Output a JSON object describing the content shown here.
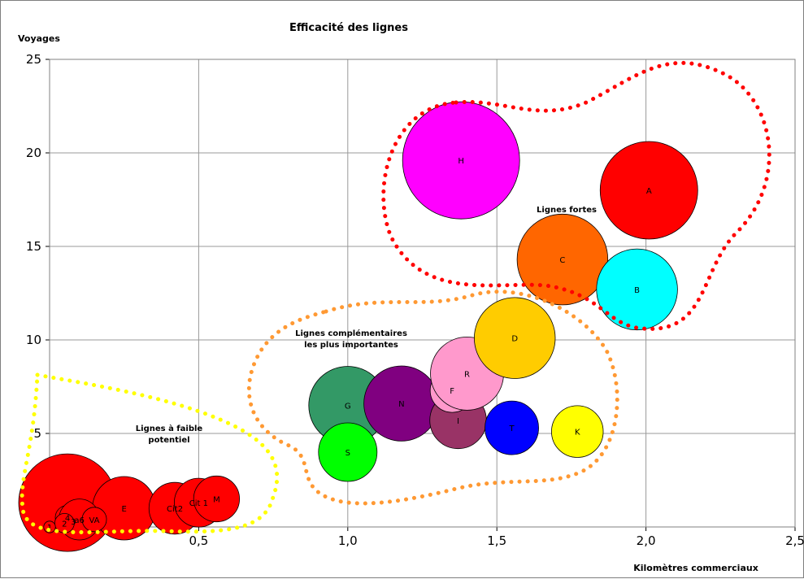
{
  "chart_data": {
    "type": "bubble",
    "title": "Efficacité des lignes",
    "xlabel": "Kilomètres commerciaux",
    "ylabel": "Voyages",
    "xlim": [
      0,
      2.5
    ],
    "ylim": [
      0,
      25
    ],
    "x_ticks": [
      "0,0",
      "0,5",
      "1,0",
      "1,5",
      "2,0",
      "2,5"
    ],
    "y_ticks": [
      "0",
      "5",
      "10",
      "15",
      "20",
      "25"
    ],
    "grid": true,
    "points": [
      {
        "label": "",
        "x": 0.06,
        "y": 1.3,
        "size": 1.0,
        "color": "#ff0000"
      },
      {
        "label": "E",
        "x": 0.25,
        "y": 1.0,
        "size": 0.65,
        "color": "#ff0000"
      },
      {
        "label": "Cit2",
        "x": 0.42,
        "y": 1.0,
        "size": 0.53,
        "color": "#ff0000"
      },
      {
        "label": "Cit 1",
        "x": 0.5,
        "y": 1.3,
        "size": 0.5,
        "color": "#ff0000"
      },
      {
        "label": "M",
        "x": 0.56,
        "y": 1.5,
        "size": 0.47,
        "color": "#ff0000"
      },
      {
        "label": "4",
        "x": 0.06,
        "y": 0.5,
        "size": 0.25,
        "color": "#ff0000"
      },
      {
        "label": "3",
        "x": 0.08,
        "y": 0.3,
        "size": 0.25,
        "color": "#ff0000"
      },
      {
        "label": "a6",
        "x": 0.1,
        "y": 0.4,
        "size": 0.42,
        "color": "#ff0000"
      },
      {
        "label": "VA",
        "x": 0.15,
        "y": 0.4,
        "size": 0.25,
        "color": "#ff0000"
      },
      {
        "label": "2",
        "x": 0.05,
        "y": 0.2,
        "size": 0.2,
        "color": "#ff0000"
      },
      {
        "label": "1",
        "x": 0.0,
        "y": 0.0,
        "size": 0.12,
        "color": "#ff0000"
      },
      {
        "label": "G",
        "x": 1.0,
        "y": 6.5,
        "size": 0.8,
        "color": "#339966"
      },
      {
        "label": "S",
        "x": 1.0,
        "y": 4.0,
        "size": 0.6,
        "color": "#00ff00"
      },
      {
        "label": "N",
        "x": 1.18,
        "y": 6.6,
        "size": 0.77,
        "color": "#800080"
      },
      {
        "label": "I",
        "x": 1.37,
        "y": 5.7,
        "size": 0.58,
        "color": "#993366"
      },
      {
        "label": "F",
        "x": 1.35,
        "y": 7.3,
        "size": 0.45,
        "color": "#ff99cc"
      },
      {
        "label": "R",
        "x": 1.4,
        "y": 8.2,
        "size": 0.75,
        "color": "#ff99cc"
      },
      {
        "label": "T",
        "x": 1.55,
        "y": 5.3,
        "size": 0.55,
        "color": "#0000ff"
      },
      {
        "label": "K",
        "x": 1.77,
        "y": 5.1,
        "size": 0.53,
        "color": "#ffff00"
      },
      {
        "label": "D",
        "x": 1.56,
        "y": 10.1,
        "size": 0.83,
        "color": "#ffcc00"
      },
      {
        "label": "C",
        "x": 1.72,
        "y": 14.3,
        "size": 0.93,
        "color": "#ff6600"
      },
      {
        "label": "B",
        "x": 1.97,
        "y": 12.7,
        "size": 0.83,
        "color": "#00ffff"
      },
      {
        "label": "A",
        "x": 2.01,
        "y": 18.0,
        "size": 1.0,
        "color": "#ff0000"
      },
      {
        "label": "H",
        "x": 1.38,
        "y": 19.6,
        "size": 1.2,
        "color": "#ff00ff"
      }
    ],
    "groups": [
      {
        "label": "Lignes fortes",
        "color": "#ff0000"
      },
      {
        "label": "Lignes complémentaires les plus importantes",
        "color": "#ff9933"
      },
      {
        "label": "Lignes à faible potentiel",
        "color": "#ffff00"
      }
    ]
  },
  "annotations": {
    "fortes": "Lignes fortes",
    "complementaires_1": "Lignes complémentaires",
    "complementaires_2": "les plus importantes",
    "faible_1": "Lignes à faible",
    "faible_2": "potentiel"
  }
}
